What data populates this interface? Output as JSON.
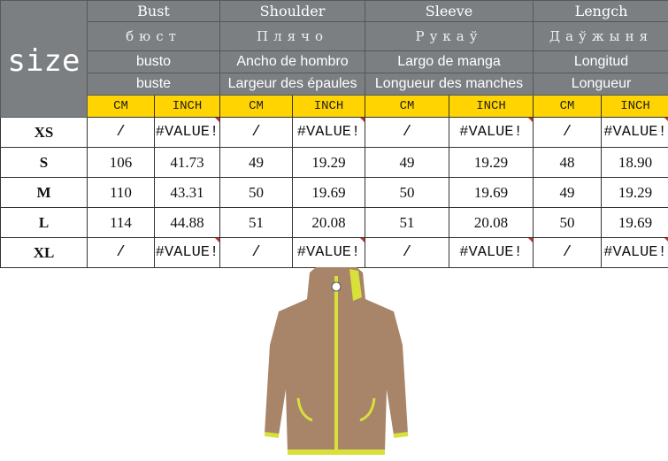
{
  "header": {
    "size_label": "size",
    "columns": [
      {
        "en": "Bust",
        "ru": "бюст",
        "es": "busto",
        "fr": "buste"
      },
      {
        "en": "Shoulder",
        "ru": "Плячо",
        "es": "Ancho de hombro",
        "fr": "Largeur des épaules"
      },
      {
        "en": "Sleeve",
        "ru": "Рукаў",
        "es": "Largo de manga",
        "fr": "Longueur des manches"
      },
      {
        "en": "Lengch",
        "ru": "Даўжыня",
        "es": "Longitud",
        "fr": "Longueur"
      }
    ],
    "units": [
      "CM",
      "INCH",
      "CM",
      "INCH",
      "CM",
      "INCH",
      "CM",
      "INCH"
    ]
  },
  "rows": [
    {
      "size": "XS",
      "values": [
        "/",
        "#VALUE!",
        "/",
        "#VALUE!",
        "/",
        "#VALUE!",
        "/",
        "#VALUE!"
      ]
    },
    {
      "size": "S",
      "values": [
        "106",
        "41.73",
        "49",
        "19.29",
        "49",
        "19.29",
        "48",
        "18.90"
      ]
    },
    {
      "size": "M",
      "values": [
        "110",
        "43.31",
        "50",
        "19.69",
        "50",
        "19.69",
        "49",
        "19.29"
      ]
    },
    {
      "size": "L",
      "values": [
        "114",
        "44.88",
        "51",
        "20.08",
        "51",
        "20.08",
        "50",
        "19.69"
      ]
    },
    {
      "size": "XL",
      "values": [
        "/",
        "#VALUE!",
        "/",
        "#VALUE!",
        "/",
        "#VALUE!",
        "/",
        "#VALUE!"
      ]
    }
  ],
  "colors": {
    "header_bg": "#7c7f82",
    "unit_bg": "#ffd400",
    "jacket": "#a88468",
    "trim": "#d8e03a"
  },
  "product_image": "jacket-photo"
}
